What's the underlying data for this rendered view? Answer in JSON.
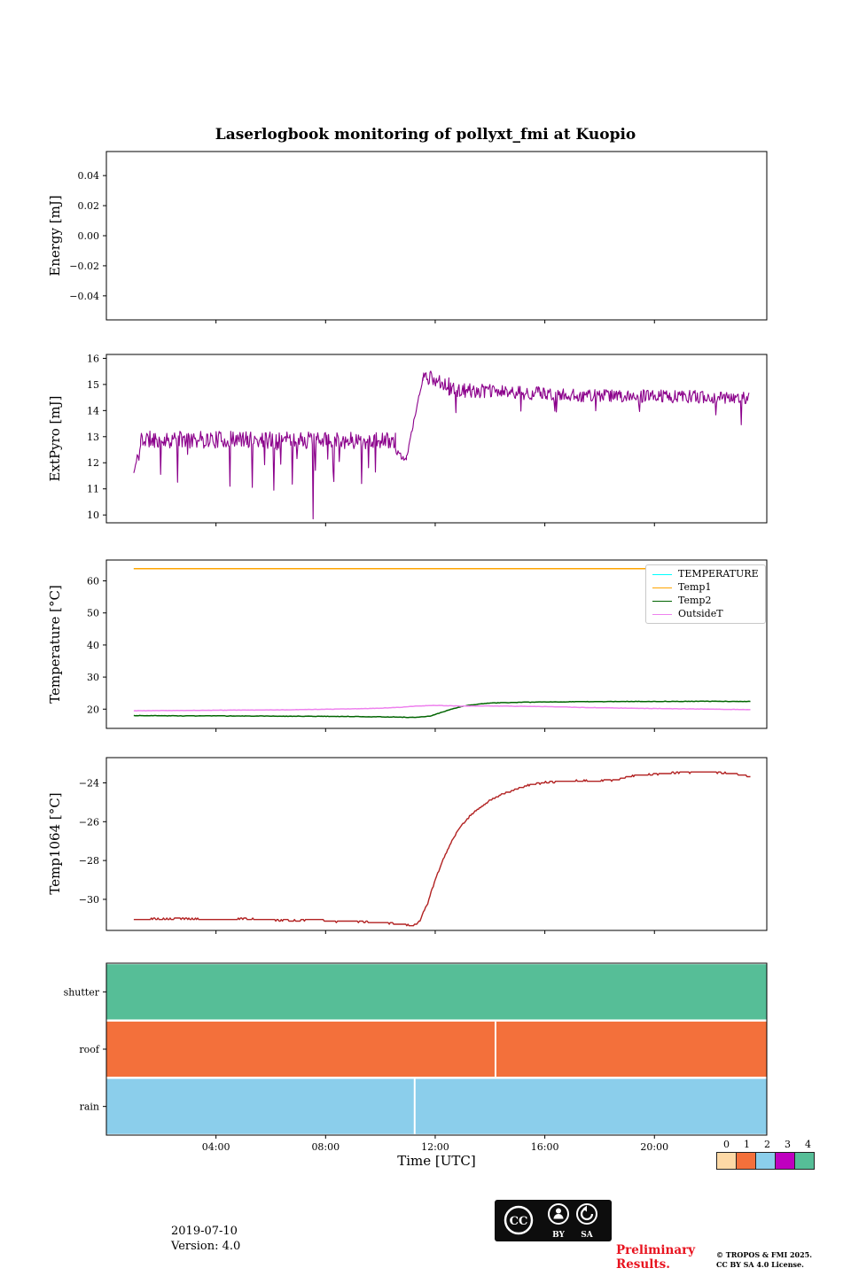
{
  "title": "Laserlogbook monitoring of pollyxt_fmi at Kuopio",
  "xaxis": {
    "label": "Time [UTC]",
    "lim": [
      0,
      24.1
    ],
    "ticks": [
      {
        "t": 4,
        "label": "04:00"
      },
      {
        "t": 8,
        "label": "08:00"
      },
      {
        "t": 12,
        "label": "12:00"
      },
      {
        "t": 16,
        "label": "16:00"
      },
      {
        "t": 20,
        "label": "20:00"
      }
    ]
  },
  "chart_data": [
    {
      "id": "energy",
      "type": "line",
      "ylabel": "Energy [mJ]",
      "ylim": [
        -0.056,
        0.056
      ],
      "yticks": [
        {
          "v": -0.04,
          "label": "−0.04"
        },
        {
          "v": -0.02,
          "label": "−0.02"
        },
        {
          "v": 0.0,
          "label": "0.00"
        },
        {
          "v": 0.02,
          "label": "0.02"
        },
        {
          "v": 0.04,
          "label": "0.04"
        }
      ],
      "series": []
    },
    {
      "id": "extpyro",
      "type": "line",
      "ylabel": "ExtPyro [mJ]",
      "ylim": [
        9.7,
        16.15
      ],
      "yticks": [
        {
          "v": 10,
          "label": "10"
        },
        {
          "v": 11,
          "label": "11"
        },
        {
          "v": 12,
          "label": "12"
        },
        {
          "v": 13,
          "label": "13"
        },
        {
          "v": 14,
          "label": "14"
        },
        {
          "v": 15,
          "label": "15"
        },
        {
          "v": 16,
          "label": "16"
        }
      ],
      "series": [
        {
          "name": "ExtPyro",
          "color": "#8B008B",
          "width": 1.1,
          "gen": "segments",
          "seed": 11,
          "dt": 0.028,
          "segments": [
            {
              "t0": 1.0,
              "t1": 1.25,
              "v0": 11.6,
              "v1": 12.6,
              "noise": 0.3,
              "dip": 0,
              "dipmax": 0
            },
            {
              "t0": 1.25,
              "t1": 10.55,
              "v0": 12.9,
              "v1": 12.85,
              "noise": 0.33,
              "dip": 0.06,
              "dipmax": 1.7
            },
            {
              "t0": 10.55,
              "t1": 10.95,
              "v0": 12.4,
              "v1": 12.1,
              "noise": 0.15,
              "dip": 0,
              "dipmax": 0
            },
            {
              "t0": 10.95,
              "t1": 11.55,
              "v0": 12.2,
              "v1": 15.25,
              "noise": 0.08,
              "dip": 0,
              "dipmax": 0
            },
            {
              "t0": 11.55,
              "t1": 12.5,
              "v0": 15.35,
              "v1": 15.0,
              "noise": 0.28,
              "dip": 0.05,
              "dipmax": 1.3
            },
            {
              "t0": 12.5,
              "t1": 16.0,
              "v0": 14.8,
              "v1": 14.65,
              "noise": 0.27,
              "dip": 0.05,
              "dipmax": 1.0
            },
            {
              "t0": 16.0,
              "t1": 23.45,
              "v0": 14.6,
              "v1": 14.5,
              "noise": 0.25,
              "dip": 0.04,
              "dipmax": 0.9
            }
          ],
          "deep_dips": [
            [
              7.55,
              9.85
            ],
            [
              2.6,
              11.25
            ],
            [
              4.5,
              11.1
            ],
            [
              6.1,
              10.95
            ],
            [
              9.3,
              11.2
            ]
          ]
        }
      ]
    },
    {
      "id": "temperature",
      "type": "line",
      "ylabel": "Temperature [°C]",
      "ylim": [
        14,
        66.5
      ],
      "yticks": [
        {
          "v": 20,
          "label": "20"
        },
        {
          "v": 30,
          "label": "30"
        },
        {
          "v": 40,
          "label": "40"
        },
        {
          "v": 50,
          "label": "50"
        },
        {
          "v": 60,
          "label": "60"
        }
      ],
      "legend": [
        {
          "label": "TEMPERATURE",
          "color": "#00FFFF"
        },
        {
          "label": "Temp1",
          "color": "#FFA500"
        },
        {
          "label": "Temp2",
          "color": "#006400"
        },
        {
          "label": "OutsideT",
          "color": "#EE82EE"
        }
      ],
      "series": [
        {
          "name": "TEMPERATURE",
          "color": "#00FFFF",
          "width": 1.5,
          "gen": "flat",
          "t0": 1,
          "t1": 23.5,
          "value": 63.8
        },
        {
          "name": "Temp1",
          "color": "#FFA500",
          "width": 1.5,
          "gen": "flat",
          "t0": 1,
          "t1": 23.5,
          "value": 63.8
        },
        {
          "name": "Temp2",
          "color": "#006400",
          "width": 1.5,
          "gen": "anchors",
          "seed": 3,
          "points": 420,
          "noise": 0.07,
          "anchors": [
            [
              1,
              18.0
            ],
            [
              2,
              17.95
            ],
            [
              3,
              17.9
            ],
            [
              4,
              17.9
            ],
            [
              5,
              17.85
            ],
            [
              6,
              17.8
            ],
            [
              7,
              17.8
            ],
            [
              8,
              17.75
            ],
            [
              9,
              17.7
            ],
            [
              10,
              17.6
            ],
            [
              10.8,
              17.5
            ],
            [
              11.3,
              17.4
            ],
            [
              11.8,
              17.8
            ],
            [
              12.2,
              18.9
            ],
            [
              12.6,
              20.0
            ],
            [
              13.0,
              20.9
            ],
            [
              13.5,
              21.5
            ],
            [
              14,
              21.9
            ],
            [
              15,
              22.1
            ],
            [
              16,
              22.25
            ],
            [
              17,
              22.3
            ],
            [
              18,
              22.35
            ],
            [
              19,
              22.4
            ],
            [
              20,
              22.4
            ],
            [
              21,
              22.45
            ],
            [
              22,
              22.45
            ],
            [
              23,
              22.4
            ],
            [
              23.5,
              22.4
            ]
          ]
        },
        {
          "name": "OutsideT",
          "color": "#EE82EE",
          "width": 1.5,
          "gen": "anchors",
          "seed": 9,
          "points": 420,
          "noise": 0.05,
          "anchors": [
            [
              1,
              19.5
            ],
            [
              2,
              19.55
            ],
            [
              3,
              19.6
            ],
            [
              4,
              19.65
            ],
            [
              5,
              19.7
            ],
            [
              6,
              19.75
            ],
            [
              7,
              19.85
            ],
            [
              8,
              19.95
            ],
            [
              9,
              20.1
            ],
            [
              10,
              20.3
            ],
            [
              10.7,
              20.55
            ],
            [
              11.2,
              20.9
            ],
            [
              11.7,
              21.1
            ],
            [
              12.1,
              21.15
            ],
            [
              12.5,
              21.05
            ],
            [
              13,
              20.95
            ],
            [
              13.5,
              20.95
            ],
            [
              14,
              21.0
            ],
            [
              14.5,
              20.95
            ],
            [
              15,
              20.9
            ],
            [
              15.5,
              20.85
            ],
            [
              16,
              20.8
            ],
            [
              16.5,
              20.7
            ],
            [
              17,
              20.6
            ],
            [
              17.5,
              20.5
            ],
            [
              18,
              20.45
            ],
            [
              19,
              20.3
            ],
            [
              20,
              20.2
            ],
            [
              21,
              20.1
            ],
            [
              22,
              20.0
            ],
            [
              23,
              19.9
            ],
            [
              23.5,
              19.85
            ]
          ]
        }
      ]
    },
    {
      "id": "temp1064",
      "type": "line",
      "ylabel": "Temp1064 [°C]",
      "ylim": [
        -31.6,
        -22.7
      ],
      "yticks": [
        {
          "v": -30,
          "label": "−30"
        },
        {
          "v": -28,
          "label": "−28"
        },
        {
          "v": -26,
          "label": "−26"
        },
        {
          "v": -24,
          "label": "−24"
        }
      ],
      "series": [
        {
          "name": "Temp1064",
          "color": "#B22222",
          "width": 1.4,
          "gen": "anchors",
          "seed": 5,
          "points": 560,
          "noise": 0.03,
          "quantize": 0.08,
          "anchors": [
            [
              1,
              -31.05
            ],
            [
              2,
              -31.0
            ],
            [
              3,
              -31.0
            ],
            [
              4,
              -31.05
            ],
            [
              5,
              -31.0
            ],
            [
              6,
              -31.05
            ],
            [
              7,
              -31.1
            ],
            [
              7.6,
              -31.0
            ],
            [
              8.4,
              -31.15
            ],
            [
              9,
              -31.1
            ],
            [
              9.6,
              -31.2
            ],
            [
              10.2,
              -31.2
            ],
            [
              10.8,
              -31.3
            ],
            [
              11.2,
              -31.35
            ],
            [
              11.4,
              -31.2
            ],
            [
              11.7,
              -30.3
            ],
            [
              12.0,
              -29.0
            ],
            [
              12.3,
              -27.9
            ],
            [
              12.6,
              -27.0
            ],
            [
              12.9,
              -26.3
            ],
            [
              13.2,
              -25.8
            ],
            [
              13.6,
              -25.3
            ],
            [
              14.0,
              -24.9
            ],
            [
              14.4,
              -24.6
            ],
            [
              14.8,
              -24.4
            ],
            [
              15.2,
              -24.2
            ],
            [
              15.7,
              -24.05
            ],
            [
              16.2,
              -23.95
            ],
            [
              17,
              -23.9
            ],
            [
              18,
              -23.9
            ],
            [
              18.6,
              -23.85
            ],
            [
              19.0,
              -23.7
            ],
            [
              19.4,
              -23.6
            ],
            [
              20,
              -23.55
            ],
            [
              20.6,
              -23.5
            ],
            [
              21.4,
              -23.45
            ],
            [
              22.2,
              -23.45
            ],
            [
              22.8,
              -23.5
            ],
            [
              23.2,
              -23.6
            ],
            [
              23.5,
              -23.65
            ]
          ]
        }
      ]
    },
    {
      "id": "status",
      "type": "status",
      "rows": [
        {
          "label": "shutter",
          "value": 4,
          "color": "#56BE97",
          "breaks": []
        },
        {
          "label": "roof",
          "value": 1,
          "color": "#F3703B",
          "breaks": [
            14.2
          ]
        },
        {
          "label": "rain",
          "value": 2,
          "color": "#8BCEEB",
          "breaks": [
            11.25
          ]
        }
      ],
      "trange": [
        0,
        24.1
      ]
    }
  ],
  "colorbar": {
    "values": [
      "0",
      "1",
      "2",
      "3",
      "4"
    ],
    "colors": [
      "#FDD9A6",
      "#F3703B",
      "#8BCEEB",
      "#BF00BF",
      "#56BE97"
    ]
  },
  "footer": {
    "date": "2019-07-10",
    "version": "Version: 4.0",
    "preliminary_line1": "Preliminary",
    "preliminary_line2": "Results.",
    "copyright_line1": "© TROPOS & FMI 2025.",
    "copyright_line2": "CC BY SA 4.0 License.",
    "cc_badge": {
      "cc": "CC",
      "by": "BY",
      "sa": "SA"
    }
  }
}
